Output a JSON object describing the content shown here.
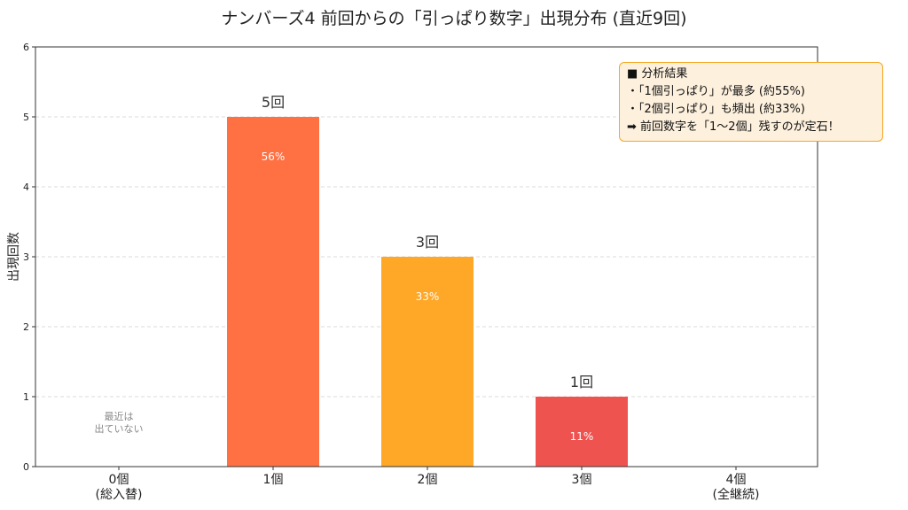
{
  "chart_data": {
    "type": "bar",
    "title": "ナンバーズ4 前回からの「引っぱり数字」出現分布 (直近9回)",
    "ylabel": "出現回数",
    "xlabel": "",
    "ylim": [
      0,
      6
    ],
    "yticks": [
      0,
      1,
      2,
      3,
      4,
      5,
      6
    ],
    "grid": true,
    "categories": [
      [
        "0個",
        "(総入替)"
      ],
      [
        "1個"
      ],
      [
        "2個"
      ],
      [
        "3個"
      ],
      [
        "4個",
        "(全継続)"
      ]
    ],
    "values": [
      0,
      5,
      3,
      1,
      0
    ],
    "value_labels": [
      "",
      "5回",
      "3回",
      "1回",
      ""
    ],
    "percent_labels": [
      "",
      "56%",
      "33%",
      "11%",
      ""
    ],
    "colors": [
      "#cccccc",
      "#ff7043",
      "#ffa726",
      "#ef5350",
      "#cccccc"
    ],
    "annotation_zero": [
      "最近は",
      "出ていない"
    ],
    "annotation_box": {
      "lines": [
        "■ 分析結果",
        "・「1個引っぱり」が最多 (約55%)",
        "・「2個引っぱり」も頻出 (約33%)",
        "➡ 前回数字を「1〜2個」残すのが定石！"
      ],
      "position": "top-right"
    }
  }
}
